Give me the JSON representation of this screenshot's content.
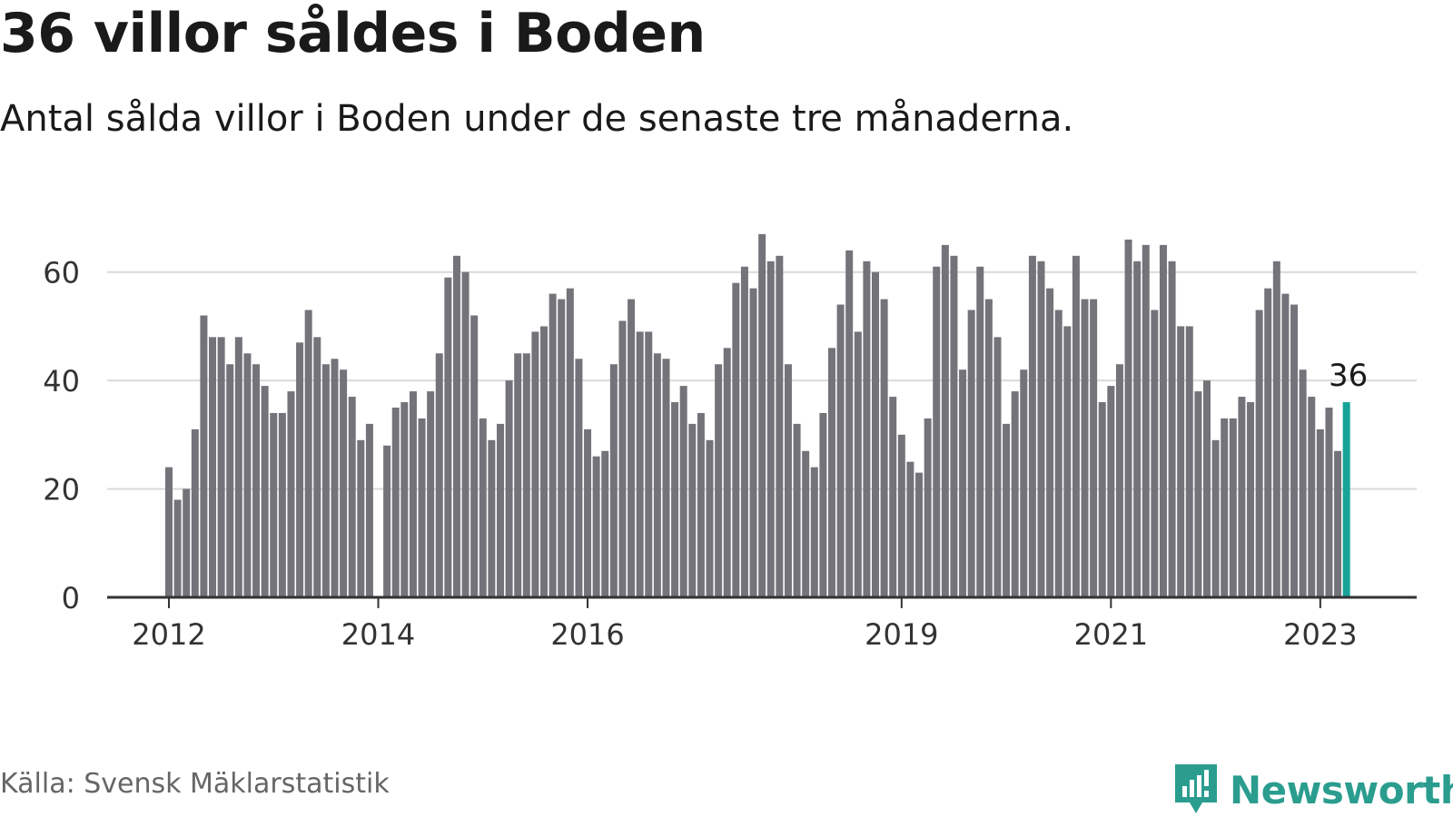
{
  "header": {
    "title": "36 villor såldes i Boden",
    "subtitle": "Antal sålda villor i Boden under de senaste tre månaderna."
  },
  "footer": {
    "source": "Källa: Svensk Mäklarstatistik",
    "brand": "Newsworthy"
  },
  "colors": {
    "bar": "#74737a",
    "highlight": "#17a398",
    "grid": "#d9d9d9",
    "axis": "#333333",
    "brand": "#2a9d8f"
  },
  "icons": {
    "brand_logo": "bar-chart-badge-icon"
  },
  "chart_data": {
    "type": "bar",
    "title": "",
    "xlabel": "",
    "ylabel": "",
    "ylim": [
      0,
      70
    ],
    "y_ticks": [
      0,
      20,
      40,
      60
    ],
    "x_ticks": [
      "2012",
      "2014",
      "2016",
      "2019",
      "2021",
      "2023"
    ],
    "grid": true,
    "highlight_label": "36",
    "values": [
      24,
      18,
      20,
      31,
      52,
      48,
      48,
      43,
      48,
      45,
      43,
      39,
      34,
      34,
      38,
      47,
      53,
      48,
      43,
      44,
      42,
      37,
      29,
      32,
      null,
      28,
      35,
      36,
      38,
      33,
      38,
      45,
      59,
      63,
      60,
      52,
      33,
      29,
      32,
      40,
      45,
      45,
      49,
      50,
      56,
      55,
      57,
      44,
      31,
      26,
      27,
      43,
      51,
      55,
      49,
      49,
      45,
      44,
      36,
      39,
      32,
      34,
      29,
      43,
      46,
      58,
      61,
      57,
      67,
      62,
      63,
      43,
      32,
      27,
      24,
      34,
      46,
      54,
      64,
      49,
      62,
      60,
      55,
      37,
      30,
      25,
      23,
      33,
      61,
      65,
      63,
      42,
      53,
      61,
      55,
      48,
      32,
      38,
      42,
      63,
      62,
      57,
      53,
      50,
      63,
      55,
      55,
      36,
      39,
      43,
      66,
      62,
      65,
      53,
      65,
      62,
      50,
      50,
      38,
      40,
      29,
      33,
      33,
      37,
      36,
      53,
      57,
      62,
      56,
      54,
      42,
      37,
      31,
      35,
      27,
      36
    ]
  }
}
